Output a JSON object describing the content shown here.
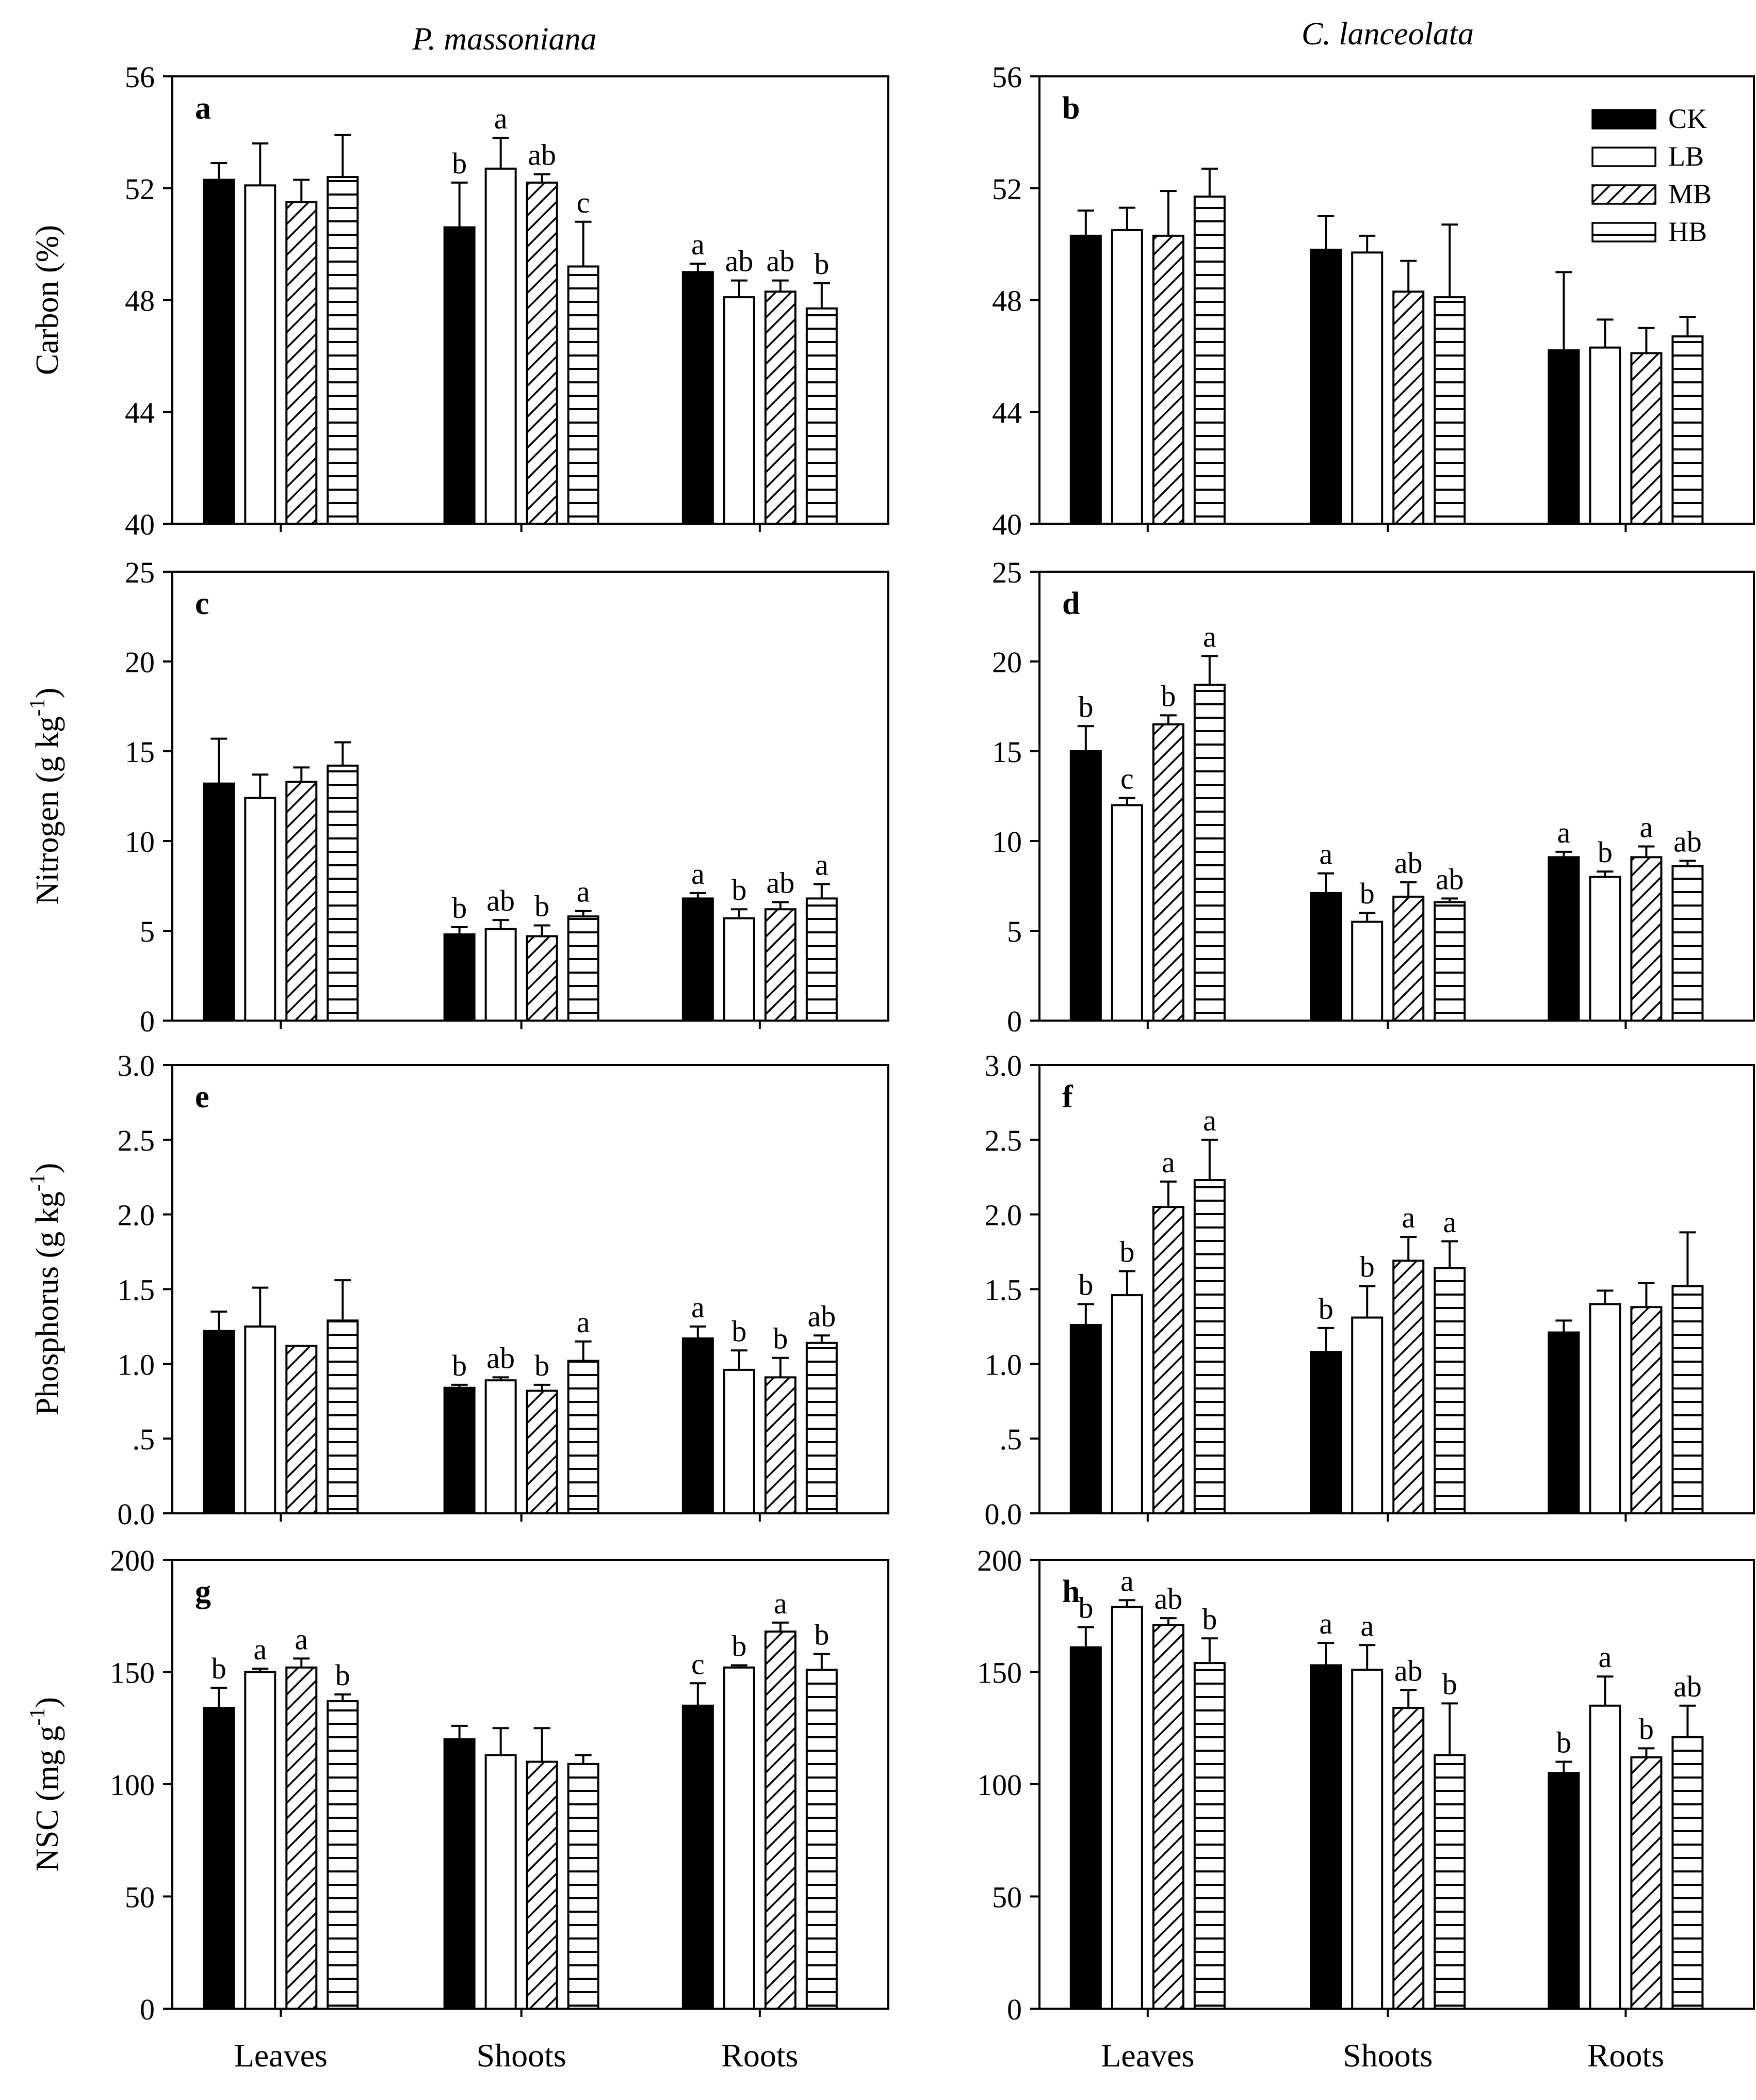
{
  "figure": {
    "column_titles": [
      "P. massoniana",
      "C. lanceolata"
    ],
    "groups": [
      "Leaves",
      "Shoots",
      "Roots"
    ],
    "legend": [
      {
        "label": "CK",
        "pattern": "solid"
      },
      {
        "label": "LB",
        "pattern": "open"
      },
      {
        "label": "MB",
        "pattern": "diagonal"
      },
      {
        "label": "HB",
        "pattern": "horizontal"
      }
    ]
  },
  "chart_data": [
    {
      "type": "bar",
      "panel": "a",
      "title": "P. massoniana",
      "ylabel": "Carbon (%)",
      "ylim": [
        40,
        56
      ],
      "yticks": [
        40,
        44,
        48,
        52,
        56
      ],
      "ytick_labels": [
        "40",
        "44",
        "48",
        "52",
        "56"
      ],
      "categories": [
        "Leaves",
        "Shoots",
        "Roots"
      ],
      "series": [
        {
          "name": "CK",
          "values": [
            52.3,
            50.6,
            49.0
          ],
          "errors": [
            0.6,
            1.6,
            0.3
          ],
          "letters": [
            "",
            "b",
            "a"
          ]
        },
        {
          "name": "LB",
          "values": [
            52.1,
            52.7,
            48.1
          ],
          "errors": [
            1.5,
            1.1,
            0.6
          ],
          "letters": [
            "",
            "a",
            "ab"
          ]
        },
        {
          "name": "MB",
          "values": [
            51.5,
            52.2,
            48.3
          ],
          "errors": [
            0.8,
            0.3,
            0.4
          ],
          "letters": [
            "",
            "ab",
            "ab"
          ]
        },
        {
          "name": "HB",
          "values": [
            52.4,
            49.2,
            47.7
          ],
          "errors": [
            1.5,
            1.6,
            0.9
          ],
          "letters": [
            "",
            "c",
            "b"
          ]
        }
      ]
    },
    {
      "type": "bar",
      "panel": "b",
      "title": "C. lanceolata",
      "ylabel": "",
      "ylim": [
        40,
        56
      ],
      "legend": true,
      "yticks": [
        40,
        44,
        48,
        52,
        56
      ],
      "ytick_labels": [
        "40",
        "44",
        "48",
        "52",
        "56"
      ],
      "categories": [
        "Leaves",
        "Shoots",
        "Roots"
      ],
      "series": [
        {
          "name": "CK",
          "values": [
            50.3,
            49.8,
            46.2
          ],
          "errors": [
            0.9,
            1.2,
            2.8
          ],
          "letters": [
            "",
            "",
            ""
          ]
        },
        {
          "name": "LB",
          "values": [
            50.5,
            49.7,
            46.3
          ],
          "errors": [
            0.8,
            0.6,
            1.0
          ],
          "letters": [
            "",
            "",
            ""
          ]
        },
        {
          "name": "MB",
          "values": [
            50.3,
            48.3,
            46.1
          ],
          "errors": [
            1.6,
            1.1,
            0.9
          ],
          "letters": [
            "",
            "",
            ""
          ]
        },
        {
          "name": "HB",
          "values": [
            51.7,
            48.1,
            46.7
          ],
          "errors": [
            1.0,
            2.6,
            0.7
          ],
          "letters": [
            "",
            "",
            ""
          ]
        }
      ]
    },
    {
      "type": "bar",
      "panel": "c",
      "ylabel": "Nitrogen (g kg",
      "ylabel_sup": "-1",
      "ylabel_end": ")",
      "ylim": [
        0,
        25
      ],
      "yticks": [
        0,
        5,
        10,
        15,
        20,
        25
      ],
      "ytick_labels": [
        "0",
        "5",
        "10",
        "15",
        "20",
        "25"
      ],
      "categories": [
        "Leaves",
        "Shoots",
        "Roots"
      ],
      "series": [
        {
          "name": "CK",
          "values": [
            13.2,
            4.8,
            6.8
          ],
          "errors": [
            2.5,
            0.4,
            0.3
          ],
          "letters": [
            "",
            "b",
            "a"
          ]
        },
        {
          "name": "LB",
          "values": [
            12.4,
            5.1,
            5.7
          ],
          "errors": [
            1.3,
            0.5,
            0.5
          ],
          "letters": [
            "",
            "ab",
            "b"
          ]
        },
        {
          "name": "MB",
          "values": [
            13.3,
            4.7,
            6.2
          ],
          "errors": [
            0.8,
            0.6,
            0.4
          ],
          "letters": [
            "",
            "b",
            "ab"
          ]
        },
        {
          "name": "HB",
          "values": [
            14.2,
            5.8,
            6.8
          ],
          "errors": [
            1.3,
            0.3,
            0.8
          ],
          "letters": [
            "",
            "a",
            "a"
          ]
        }
      ]
    },
    {
      "type": "bar",
      "panel": "d",
      "ylabel": "",
      "ylim": [
        0,
        25
      ],
      "yticks": [
        0,
        5,
        10,
        15,
        20,
        25
      ],
      "ytick_labels": [
        "0",
        "5",
        "10",
        "15",
        "20",
        "25"
      ],
      "categories": [
        "Leaves",
        "Shoots",
        "Roots"
      ],
      "series": [
        {
          "name": "CK",
          "values": [
            15.0,
            7.1,
            9.1
          ],
          "errors": [
            1.4,
            1.1,
            0.3
          ],
          "letters": [
            "b",
            "a",
            "a"
          ]
        },
        {
          "name": "LB",
          "values": [
            12.0,
            5.5,
            8.0
          ],
          "errors": [
            0.4,
            0.5,
            0.3
          ],
          "letters": [
            "c",
            "b",
            "b"
          ]
        },
        {
          "name": "MB",
          "values": [
            16.5,
            6.9,
            9.1
          ],
          "errors": [
            0.5,
            0.8,
            0.6
          ],
          "letters": [
            "b",
            "ab",
            "a"
          ]
        },
        {
          "name": "HB",
          "values": [
            18.7,
            6.6,
            8.6
          ],
          "errors": [
            1.6,
            0.2,
            0.3
          ],
          "letters": [
            "a",
            "ab",
            "ab"
          ]
        }
      ]
    },
    {
      "type": "bar",
      "panel": "e",
      "ylabel": "Phosphorus (g kg",
      "ylabel_sup": "-1",
      "ylabel_end": ")",
      "ylim": [
        0,
        3
      ],
      "yticks": [
        0,
        0.5,
        1,
        1.5,
        2,
        2.5,
        3
      ],
      "ytick_labels": [
        "0.0",
        ".5",
        "1.0",
        "1.5",
        "2.0",
        "2.5",
        "3.0"
      ],
      "categories": [
        "Leaves",
        "Shoots",
        "Roots"
      ],
      "series": [
        {
          "name": "CK",
          "values": [
            1.22,
            0.84,
            1.17
          ],
          "errors": [
            0.13,
            0.02,
            0.08
          ],
          "letters": [
            "",
            "b",
            "a"
          ]
        },
        {
          "name": "LB",
          "values": [
            1.25,
            0.89,
            0.96
          ],
          "errors": [
            0.26,
            0.02,
            0.13
          ],
          "letters": [
            "",
            "ab",
            "b"
          ]
        },
        {
          "name": "MB",
          "values": [
            1.12,
            0.82,
            0.91
          ],
          "errors": [
            0.0,
            0.04,
            0.13
          ],
          "letters": [
            "",
            "b",
            "b"
          ]
        },
        {
          "name": "HB",
          "values": [
            1.29,
            1.02,
            1.14
          ],
          "errors": [
            0.27,
            0.13,
            0.05
          ],
          "letters": [
            "",
            "a",
            "ab"
          ]
        }
      ]
    },
    {
      "type": "bar",
      "panel": "f",
      "ylabel": "",
      "ylim": [
        0,
        3
      ],
      "yticks": [
        0,
        0.5,
        1,
        1.5,
        2,
        2.5,
        3
      ],
      "ytick_labels": [
        "0.0",
        ".5",
        "1.0",
        "1.5",
        "2.0",
        "2.5",
        "3.0"
      ],
      "categories": [
        "Leaves",
        "Shoots",
        "Roots"
      ],
      "series": [
        {
          "name": "CK",
          "values": [
            1.26,
            1.08,
            1.21
          ],
          "errors": [
            0.14,
            0.16,
            0.08
          ],
          "letters": [
            "b",
            "b",
            ""
          ]
        },
        {
          "name": "LB",
          "values": [
            1.46,
            1.31,
            1.4
          ],
          "errors": [
            0.16,
            0.21,
            0.09
          ],
          "letters": [
            "b",
            "b",
            ""
          ]
        },
        {
          "name": "MB",
          "values": [
            2.05,
            1.69,
            1.38
          ],
          "errors": [
            0.17,
            0.16,
            0.16
          ],
          "letters": [
            "a",
            "a",
            ""
          ]
        },
        {
          "name": "HB",
          "values": [
            2.23,
            1.64,
            1.52
          ],
          "errors": [
            0.27,
            0.18,
            0.36
          ],
          "letters": [
            "a",
            "a",
            ""
          ]
        }
      ]
    },
    {
      "type": "bar",
      "panel": "g",
      "ylabel": "NSC (mg g",
      "ylabel_sup": "-1",
      "ylabel_end": ")",
      "ylim": [
        0,
        200
      ],
      "yticks": [
        0,
        50,
        100,
        150,
        200
      ],
      "ytick_labels": [
        "0",
        "50",
        "100",
        "150",
        "200"
      ],
      "categories": [
        "Leaves",
        "Shoots",
        "Roots"
      ],
      "series": [
        {
          "name": "CK",
          "values": [
            134,
            120,
            135
          ],
          "errors": [
            9,
            6,
            10
          ],
          "letters": [
            "b",
            "",
            "c"
          ]
        },
        {
          "name": "LB",
          "values": [
            150,
            113,
            152
          ],
          "errors": [
            1.5,
            12,
            1
          ],
          "letters": [
            "a",
            "",
            "b"
          ]
        },
        {
          "name": "MB",
          "values": [
            152,
            110,
            168
          ],
          "errors": [
            4,
            15,
            4
          ],
          "letters": [
            "a",
            "",
            "a"
          ]
        },
        {
          "name": "HB",
          "values": [
            137,
            109,
            151
          ],
          "errors": [
            3,
            4,
            7
          ],
          "letters": [
            "b",
            "",
            "b"
          ]
        }
      ]
    },
    {
      "type": "bar",
      "panel": "h",
      "ylabel": "",
      "ylim": [
        0,
        200
      ],
      "yticks": [
        0,
        50,
        100,
        150,
        200
      ],
      "ytick_labels": [
        "0",
        "50",
        "100",
        "150",
        "200"
      ],
      "categories": [
        "Leaves",
        "Shoots",
        "Roots"
      ],
      "series": [
        {
          "name": "CK",
          "values": [
            161,
            153,
            105
          ],
          "errors": [
            9,
            10,
            5
          ],
          "letters": [
            "b",
            "a",
            "b"
          ]
        },
        {
          "name": "LB",
          "values": [
            179,
            151,
            135
          ],
          "errors": [
            3,
            11,
            13
          ],
          "letters": [
            "a",
            "a",
            "a"
          ]
        },
        {
          "name": "MB",
          "values": [
            171,
            134,
            112
          ],
          "errors": [
            3,
            8,
            4
          ],
          "letters": [
            "ab",
            "ab",
            "b"
          ]
        },
        {
          "name": "HB",
          "values": [
            154,
            113,
            121
          ],
          "errors": [
            11,
            23,
            14
          ],
          "letters": [
            "b",
            "b",
            "ab"
          ]
        }
      ]
    }
  ]
}
